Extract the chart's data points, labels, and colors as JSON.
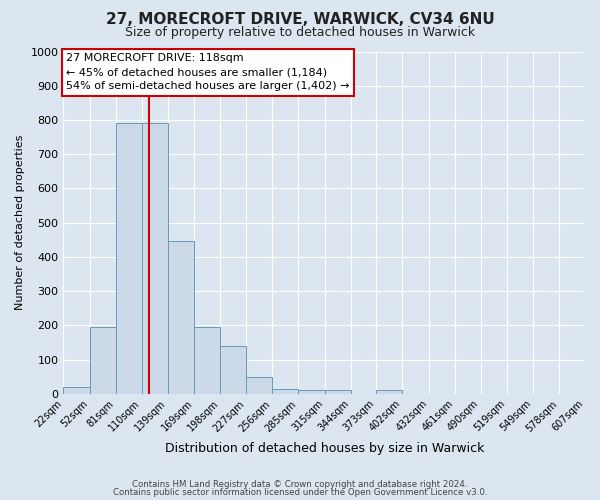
{
  "title": "27, MORECROFT DRIVE, WARWICK, CV34 6NU",
  "subtitle": "Size of property relative to detached houses in Warwick",
  "xlabel": "Distribution of detached houses by size in Warwick",
  "ylabel": "Number of detached properties",
  "bar_color": "#ccd9e8",
  "bar_edge_color": "#6699bb",
  "plot_bg_color": "#dce6f0",
  "fig_bg_color": "#dce6f0",
  "grid_color": "#ffffff",
  "annotation_box_color": "#cc0000",
  "annotation_line_color": "#cc0000",
  "bin_edges": [
    22,
    52,
    81,
    110,
    139,
    169,
    198,
    227,
    256,
    285,
    315,
    344,
    373,
    402,
    432,
    461,
    490,
    519,
    549,
    578,
    607
  ],
  "bin_labels": [
    "22sqm",
    "52sqm",
    "81sqm",
    "110sqm",
    "139sqm",
    "169sqm",
    "198sqm",
    "227sqm",
    "256sqm",
    "285sqm",
    "315sqm",
    "344sqm",
    "373sqm",
    "402sqm",
    "432sqm",
    "461sqm",
    "490sqm",
    "519sqm",
    "549sqm",
    "578sqm",
    "607sqm"
  ],
  "counts": [
    20,
    195,
    790,
    790,
    445,
    195,
    140,
    50,
    15,
    12,
    10,
    0,
    10,
    0,
    0,
    0,
    0,
    0,
    0,
    0
  ],
  "vline_x": 118,
  "annotation_text_line1": "27 MORECROFT DRIVE: 118sqm",
  "annotation_text_line2": "← 45% of detached houses are smaller (1,184)",
  "annotation_text_line3": "54% of semi-detached houses are larger (1,402) →",
  "ylim": [
    0,
    1000
  ],
  "yticks": [
    0,
    100,
    200,
    300,
    400,
    500,
    600,
    700,
    800,
    900,
    1000
  ],
  "footer_line1": "Contains HM Land Registry data © Crown copyright and database right 2024.",
  "footer_line2": "Contains public sector information licensed under the Open Government Licence v3.0."
}
